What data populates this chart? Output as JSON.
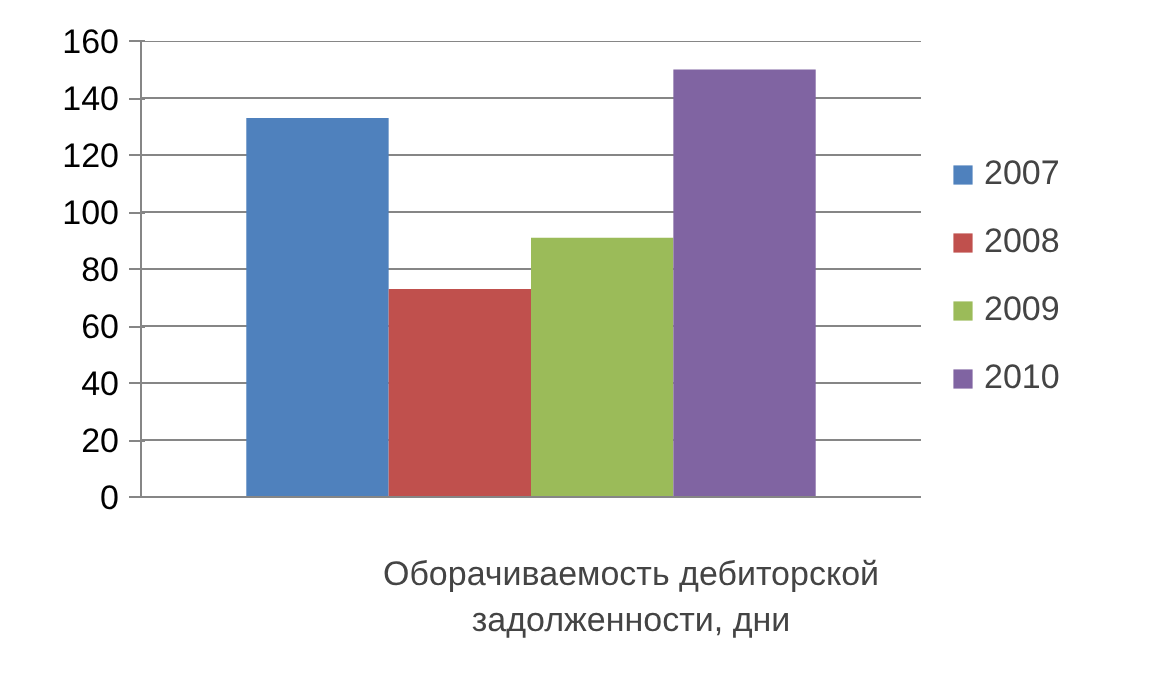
{
  "chart_data": {
    "type": "bar",
    "categories": [
      "Оборачиваемость дебиторской задолженности, дни"
    ],
    "series": [
      {
        "name": "2007",
        "color": "#4f81bd",
        "values": [
          133
        ]
      },
      {
        "name": "2008",
        "color": "#c0504d",
        "values": [
          73
        ]
      },
      {
        "name": "2009",
        "color": "#9bbb59",
        "values": [
          91
        ]
      },
      {
        "name": "2010",
        "color": "#8064a2",
        "values": [
          150
        ]
      }
    ],
    "ylim": [
      0,
      160
    ],
    "yticks": [
      0,
      20,
      40,
      60,
      80,
      100,
      120,
      140,
      160
    ],
    "grid": "y",
    "legend": "right"
  }
}
